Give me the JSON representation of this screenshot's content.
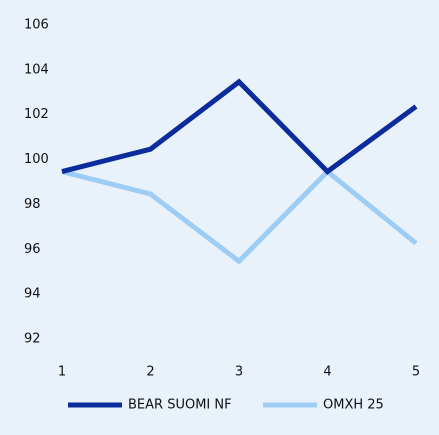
{
  "chart_data": {
    "type": "line",
    "x": [
      1,
      2,
      3,
      4,
      5
    ],
    "series": [
      {
        "name": "BEAR SUOMI NF",
        "color": "#0a2c9c",
        "values": [
          100,
          101,
          104,
          100,
          102.9
        ]
      },
      {
        "name": "OMXH 25",
        "color": "#9dcdf5",
        "values": [
          100,
          99,
          96,
          100,
          96.8
        ]
      }
    ],
    "xlim": [
      1,
      5
    ],
    "xticks": [
      1,
      2,
      3,
      4,
      5
    ],
    "ylim": [
      92,
      106
    ],
    "yticks": [
      92,
      94,
      96,
      98,
      100,
      102,
      104,
      106
    ],
    "grid": false,
    "legend": "bottom"
  }
}
